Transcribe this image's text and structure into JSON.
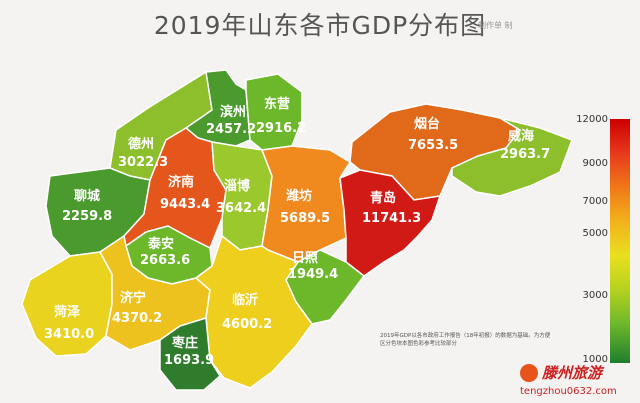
{
  "title": "2019年山东各市GDP分布图",
  "title_tag": "制作单 制",
  "colors": {
    "red": "#d11a16",
    "orange_red": "#e5561d",
    "orange": "#f08a1f",
    "yellow": "#e8cd1e",
    "yellow_green": "#8fbf2c",
    "green": "#4a9a2e",
    "dark_green": "#2f7d2c"
  },
  "regions": [
    {
      "id": "binzhou",
      "name": "滨州",
      "value": "2457.2"
    },
    {
      "id": "dongying",
      "name": "东营",
      "value": "2916.2"
    },
    {
      "id": "dezhou",
      "name": "德州",
      "value": "3022.3"
    },
    {
      "id": "yantai",
      "name": "烟台",
      "value": "7653.5"
    },
    {
      "id": "weihai",
      "name": "威海",
      "value": "2963.7"
    },
    {
      "id": "jinan",
      "name": "济南",
      "value": "9443.4"
    },
    {
      "id": "zibo",
      "name": "淄博",
      "value": "3642.4"
    },
    {
      "id": "weifang",
      "name": "潍坊",
      "value": "5689.5"
    },
    {
      "id": "qingdao",
      "name": "青岛",
      "value": "11741.3"
    },
    {
      "id": "liaocheng",
      "name": "聊城",
      "value": "2259.8"
    },
    {
      "id": "taian",
      "name": "泰安",
      "value": "2663.6"
    },
    {
      "id": "rizhao",
      "name": "日照",
      "value": "1949.4"
    },
    {
      "id": "heze",
      "name": "菏泽",
      "value": "3410.0"
    },
    {
      "id": "jining",
      "name": "济宁",
      "value": "4370.2"
    },
    {
      "id": "linyi",
      "name": "临沂",
      "value": "4600.2"
    },
    {
      "id": "zaozhuang",
      "name": "枣庄",
      "value": "1693.9"
    }
  ],
  "legend": {
    "labels": [
      "12000",
      "9000",
      "7000",
      "5000",
      "3000",
      "1000"
    ]
  },
  "note": "2019年GDP以各市政府工作报告（18年初报）的数据为基础。为方便区分色块本图色彩参考比较部分",
  "brand": "滕州旅游",
  "url": "tengzhou0632.com"
}
